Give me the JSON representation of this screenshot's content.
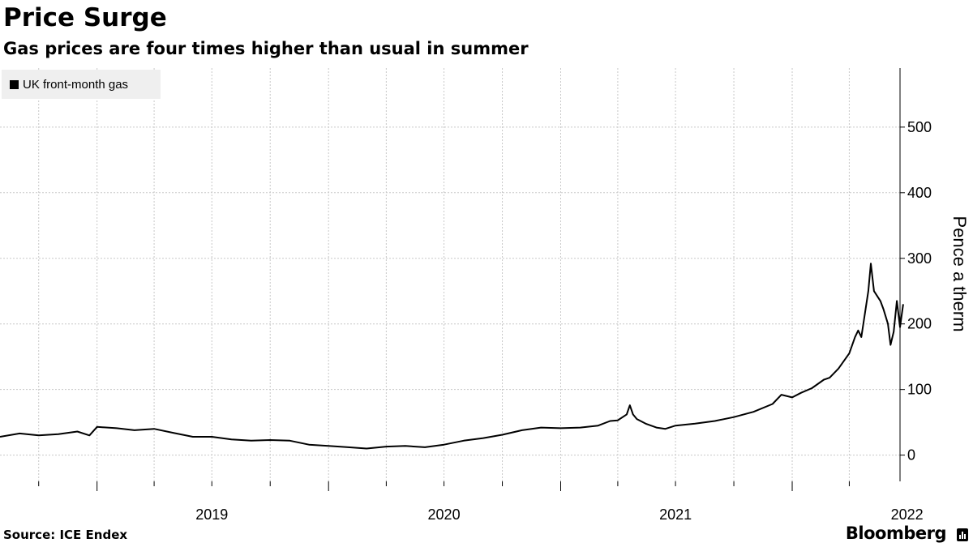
{
  "header": {
    "title": "Price Surge",
    "subtitle": "Gas prices are four times higher than usual in summer"
  },
  "legend": {
    "label": "UK front-month gas",
    "color": "#000000"
  },
  "footer": {
    "source": "Source: ICE Endex",
    "brand": "Bloomberg"
  },
  "chart_data": {
    "type": "line",
    "title": "Price Surge",
    "subtitle": "Gas prices are four times higher than usual in summer",
    "xlabel": "",
    "ylabel": "Pence a therm",
    "x_tick_labels": [
      "2019",
      "2020",
      "2021",
      "2022"
    ],
    "y_ticks": [
      0,
      100,
      200,
      300,
      400,
      500
    ],
    "xlim": [
      "2018-08-01",
      "2022-06-20"
    ],
    "ylim": [
      -40,
      590
    ],
    "grid": true,
    "legend_position": "top-left",
    "y_axis_side": "right",
    "series": [
      {
        "name": "UK front-month gas",
        "color": "#000000",
        "points": [
          [
            "2018-08-01",
            28
          ],
          [
            "2018-09-01",
            33
          ],
          [
            "2018-10-01",
            30
          ],
          [
            "2018-11-01",
            32
          ],
          [
            "2018-12-01",
            36
          ],
          [
            "2018-12-20",
            30
          ],
          [
            "2019-01-01",
            43
          ],
          [
            "2019-02-01",
            41
          ],
          [
            "2019-03-01",
            38
          ],
          [
            "2019-04-01",
            40
          ],
          [
            "2019-05-01",
            34
          ],
          [
            "2019-06-01",
            28
          ],
          [
            "2019-07-01",
            28
          ],
          [
            "2019-08-01",
            24
          ],
          [
            "2019-09-01",
            22
          ],
          [
            "2019-10-01",
            23
          ],
          [
            "2019-11-01",
            22
          ],
          [
            "2019-12-01",
            16
          ],
          [
            "2020-01-01",
            14
          ],
          [
            "2020-02-01",
            12
          ],
          [
            "2020-03-01",
            10
          ],
          [
            "2020-04-01",
            13
          ],
          [
            "2020-05-01",
            14
          ],
          [
            "2020-06-01",
            12
          ],
          [
            "2020-07-01",
            16
          ],
          [
            "2020-08-01",
            22
          ],
          [
            "2020-09-01",
            26
          ],
          [
            "2020-10-01",
            31
          ],
          [
            "2020-11-01",
            38
          ],
          [
            "2020-12-01",
            42
          ],
          [
            "2021-01-01",
            41
          ],
          [
            "2021-02-01",
            42
          ],
          [
            "2021-03-01",
            45
          ],
          [
            "2021-03-20",
            52
          ],
          [
            "2021-04-01",
            53
          ],
          [
            "2021-04-15",
            62
          ],
          [
            "2021-04-20",
            76
          ],
          [
            "2021-04-25",
            62
          ],
          [
            "2021-05-01",
            55
          ],
          [
            "2021-05-15",
            48
          ],
          [
            "2021-06-01",
            42
          ],
          [
            "2021-06-15",
            40
          ],
          [
            "2021-07-01",
            45
          ],
          [
            "2021-08-01",
            48
          ],
          [
            "2021-09-01",
            52
          ],
          [
            "2021-10-01",
            58
          ],
          [
            "2021-11-01",
            66
          ],
          [
            "2021-12-01",
            78
          ],
          [
            "2021-12-15",
            92
          ],
          [
            "2022-01-01",
            88
          ],
          [
            "2022-01-15",
            95
          ],
          [
            "2022-02-01",
            102
          ],
          [
            "2022-02-20",
            115
          ],
          [
            "2022-03-01",
            118
          ],
          [
            "2022-03-15",
            132
          ],
          [
            "2022-04-01",
            155
          ],
          [
            "2022-04-10",
            180
          ],
          [
            "2022-04-15",
            190
          ],
          [
            "2022-04-20",
            180
          ],
          [
            "2022-05-01",
            250
          ],
          [
            "2022-05-05",
            292
          ],
          [
            "2022-05-10",
            250
          ],
          [
            "2022-05-20",
            235
          ],
          [
            "2022-05-25",
            222
          ],
          [
            "2022-06-01",
            200
          ],
          [
            "2022-06-05",
            168
          ],
          [
            "2022-06-10",
            188
          ],
          [
            "2022-06-15",
            235
          ],
          [
            "2022-06-20",
            195
          ],
          [
            "2022-06-25",
            230
          ]
        ]
      }
    ]
  }
}
